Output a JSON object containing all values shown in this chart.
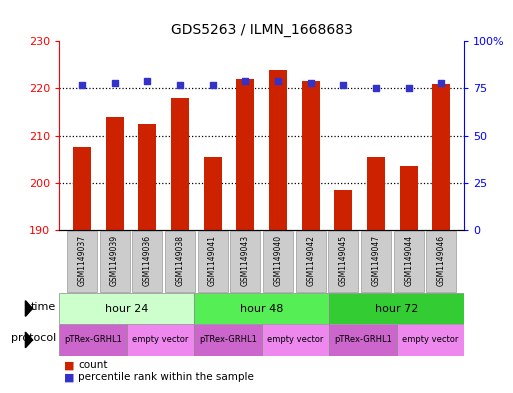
{
  "title": "GDS5263 / ILMN_1668683",
  "samples": [
    "GSM1149037",
    "GSM1149039",
    "GSM1149036",
    "GSM1149038",
    "GSM1149041",
    "GSM1149043",
    "GSM1149040",
    "GSM1149042",
    "GSM1149045",
    "GSM1149047",
    "GSM1149044",
    "GSM1149046"
  ],
  "counts": [
    207.5,
    214.0,
    212.5,
    218.0,
    205.5,
    222.0,
    224.0,
    221.5,
    198.5,
    205.5,
    203.5,
    221.0
  ],
  "percentiles": [
    77,
    78,
    79,
    77,
    77,
    79,
    79,
    78,
    77,
    75,
    75,
    78
  ],
  "ylim_left": [
    190,
    230
  ],
  "ylim_right": [
    0,
    100
  ],
  "yticks_left": [
    190,
    200,
    210,
    220,
    230
  ],
  "yticks_right": [
    0,
    25,
    50,
    75,
    100
  ],
  "ytick_labels_right": [
    "0",
    "25",
    "50",
    "75",
    "100%"
  ],
  "bar_color": "#cc2200",
  "dot_color": "#3333cc",
  "time_groups": [
    {
      "label": "hour 24",
      "start": 0,
      "end": 4,
      "color": "#ccffcc"
    },
    {
      "label": "hour 48",
      "start": 4,
      "end": 8,
      "color": "#55ee55"
    },
    {
      "label": "hour 72",
      "start": 8,
      "end": 12,
      "color": "#33cc33"
    }
  ],
  "protocol_groups": [
    {
      "label": "pTRex-GRHL1",
      "start": 0,
      "end": 2,
      "color": "#cc66cc"
    },
    {
      "label": "empty vector",
      "start": 2,
      "end": 4,
      "color": "#ee88ee"
    },
    {
      "label": "pTRex-GRHL1",
      "start": 4,
      "end": 6,
      "color": "#cc66cc"
    },
    {
      "label": "empty vector",
      "start": 6,
      "end": 8,
      "color": "#ee88ee"
    },
    {
      "label": "pTRex-GRHL1",
      "start": 8,
      "end": 10,
      "color": "#cc66cc"
    },
    {
      "label": "empty vector",
      "start": 10,
      "end": 12,
      "color": "#ee88ee"
    }
  ],
  "time_row_label": "time",
  "protocol_row_label": "protocol",
  "legend_count_label": "count",
  "legend_percentile_label": "percentile rank within the sample",
  "sample_box_color": "#cccccc",
  "sample_box_edge": "#999999",
  "bar_width": 0.55
}
